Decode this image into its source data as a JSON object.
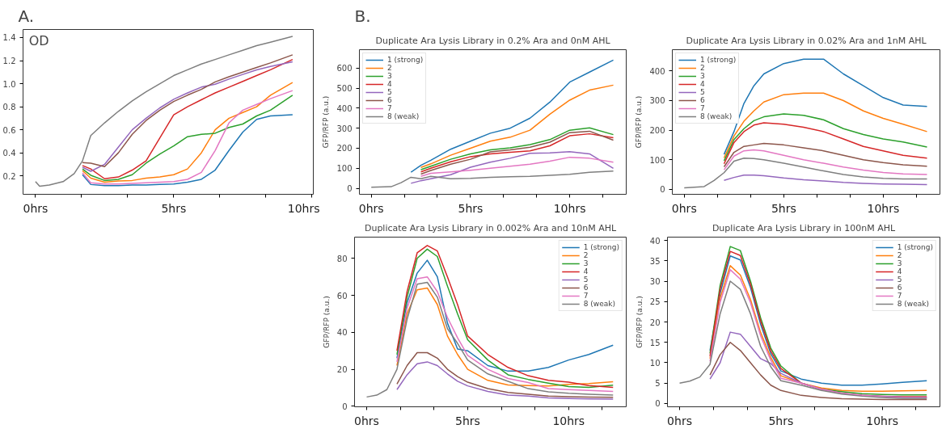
{
  "chart_data": [
    {
      "type": "line",
      "annotations": [
        "A.",
        "OD"
      ],
      "x": [
        0,
        0.15,
        0.5,
        1,
        1.4,
        1.7,
        2,
        2.5,
        3,
        3.5,
        4,
        4.5,
        5,
        5.5,
        6,
        6.5,
        7,
        7.5,
        8,
        8.5,
        9.3
      ],
      "xlim": [
        -0.45,
        10.05
      ],
      "ylim": [
        0.04,
        1.47
      ],
      "xticks": [
        {
          "value": 0,
          "label": "0hrs"
        },
        {
          "value": 1.667,
          "label": null
        },
        {
          "value": 3.333,
          "label": null
        },
        {
          "value": 5,
          "label": "5hrs"
        },
        {
          "value": 6.667,
          "label": null
        },
        {
          "value": 8.333,
          "label": null
        },
        {
          "value": 10,
          "label": "10hrs"
        }
      ],
      "yticks": [
        {
          "value": 0.2,
          "label": "0.2"
        },
        {
          "value": 0.4,
          "label": "0.4"
        },
        {
          "value": 0.6,
          "label": "0.6"
        },
        {
          "value": 0.8,
          "label": "0.8"
        },
        {
          "value": 1.0,
          "label": "1.0"
        },
        {
          "value": 1.2,
          "label": "1.2"
        },
        {
          "value": 1.4,
          "label": "1.4"
        }
      ],
      "grid": false,
      "legend": false,
      "series": [
        {
          "color": "#1f77b4",
          "values": [
            null,
            null,
            null,
            null,
            null,
            0.21,
            0.125,
            0.115,
            0.115,
            0.12,
            0.12,
            0.125,
            0.13,
            0.145,
            0.17,
            0.25,
            0.42,
            0.58,
            0.69,
            0.72,
            0.73
          ]
        },
        {
          "color": "#ff7f0e",
          "values": [
            null,
            null,
            null,
            null,
            null,
            0.245,
            0.18,
            0.145,
            0.155,
            0.16,
            0.18,
            0.19,
            0.21,
            0.26,
            0.4,
            0.6,
            0.7,
            0.75,
            0.8,
            0.9,
            1.01
          ]
        },
        {
          "color": "#2ca02c",
          "values": [
            null,
            null,
            null,
            null,
            null,
            0.26,
            0.205,
            0.16,
            0.17,
            0.21,
            0.31,
            0.39,
            0.46,
            0.54,
            0.56,
            0.57,
            0.62,
            0.65,
            0.72,
            0.77,
            0.9
          ]
        },
        {
          "color": "#d62728",
          "values": [
            null,
            null,
            null,
            null,
            null,
            0.29,
            0.26,
            0.175,
            0.19,
            0.25,
            0.33,
            0.53,
            0.73,
            0.8,
            0.86,
            0.92,
            0.97,
            1.02,
            1.07,
            1.12,
            1.21
          ]
        },
        {
          "color": "#9467bd",
          "values": [
            null,
            null,
            null,
            null,
            null,
            0.275,
            0.24,
            0.3,
            0.45,
            0.6,
            0.7,
            0.79,
            0.865,
            0.92,
            0.97,
            0.995,
            1.04,
            1.08,
            1.12,
            1.15,
            1.19
          ]
        },
        {
          "color": "#8c564b",
          "values": [
            null,
            null,
            null,
            null,
            null,
            0.315,
            0.31,
            0.28,
            0.4,
            0.56,
            0.68,
            0.77,
            0.845,
            0.9,
            0.95,
            1.015,
            1.06,
            1.1,
            1.14,
            1.18,
            1.25
          ]
        },
        {
          "color": "#e377c2",
          "values": [
            null,
            null,
            null,
            null,
            null,
            0.225,
            0.14,
            0.13,
            0.13,
            0.135,
            0.14,
            0.145,
            0.15,
            0.17,
            0.23,
            0.42,
            0.66,
            0.77,
            0.82,
            0.87,
            0.94
          ]
        },
        {
          "color": "#7f7f7f",
          "values": [
            0.15,
            0.11,
            0.12,
            0.15,
            0.22,
            0.33,
            0.55,
            0.66,
            0.76,
            0.85,
            0.93,
            1.0,
            1.07,
            1.12,
            1.17,
            1.21,
            1.25,
            1.29,
            1.33,
            1.36,
            1.41
          ]
        }
      ]
    },
    {
      "type": "line",
      "title": "Duplicate Ara Lysis Library in 0.2% Ara and 0nM AHL",
      "ylabel": "GFP/RFP (a.u.)",
      "annotations": [
        "B."
      ],
      "x": [
        0,
        1,
        1.5,
        2,
        2.5,
        3,
        4,
        5,
        6,
        7,
        8,
        9,
        10,
        11,
        12.2
      ],
      "xlim": [
        -0.6,
        12.85
      ],
      "ylim": [
        -30,
        692
      ],
      "xticks": [
        {
          "value": 0,
          "label": "0hrs"
        },
        {
          "value": 1.667,
          "label": null
        },
        {
          "value": 3.333,
          "label": null
        },
        {
          "value": 5,
          "label": "5hrs"
        },
        {
          "value": 6.667,
          "label": null
        },
        {
          "value": 8.333,
          "label": null
        },
        {
          "value": 10,
          "label": "10hrs"
        },
        {
          "value": 11.667,
          "label": null
        }
      ],
      "yticks": [
        0,
        100,
        200,
        300,
        400,
        500,
        600
      ],
      "grid": false,
      "legend": "top left",
      "series": [
        {
          "name": "1 (strong)",
          "color": "#1f77b4",
          "values": [
            null,
            null,
            null,
            80,
            115,
            140,
            195,
            235,
            275,
            300,
            350,
            430,
            530,
            580,
            640
          ]
        },
        {
          "name": "2",
          "color": "#ff7f0e",
          "values": [
            null,
            null,
            null,
            null,
            104,
            122,
            165,
            200,
            235,
            255,
            290,
            370,
            440,
            490,
            515
          ]
        },
        {
          "name": "3",
          "color": "#2ca02c",
          "values": [
            null,
            null,
            null,
            null,
            93,
            110,
            145,
            172,
            192,
            202,
            218,
            243,
            290,
            302,
            268
          ]
        },
        {
          "name": "4",
          "color": "#d62728",
          "values": [
            null,
            null,
            null,
            null,
            82,
            100,
            132,
            158,
            172,
            180,
            187,
            212,
            262,
            272,
            252
          ]
        },
        {
          "name": "5",
          "color": "#9467bd",
          "values": [
            null,
            null,
            null,
            25,
            38,
            48,
            68,
            105,
            130,
            150,
            175,
            177,
            183,
            172,
            100
          ]
        },
        {
          "name": "6",
          "color": "#8c564b",
          "values": [
            null,
            null,
            null,
            null,
            71,
            89,
            120,
            145,
            182,
            192,
            205,
            230,
            278,
            285,
            240
          ]
        },
        {
          "name": "7",
          "color": "#e377c2",
          "values": [
            null,
            null,
            null,
            null,
            60,
            75,
            82,
            90,
            100,
            110,
            120,
            135,
            155,
            150,
            130
          ]
        },
        {
          "name": "8 (weak)",
          "color": "#7f7f7f",
          "values": [
            5,
            8,
            28,
            55,
            48,
            60,
            48,
            50,
            55,
            58,
            60,
            65,
            70,
            80,
            86
          ]
        }
      ]
    },
    {
      "type": "line",
      "title": "Duplicate Ara Lysis Library in 0.02% Ara and 1nM AHL",
      "ylabel": "GFP/RFP (a.u.)",
      "x": [
        0,
        1,
        1.5,
        2,
        2.5,
        3,
        3.5,
        4,
        5,
        6,
        7,
        8,
        9,
        10,
        11,
        12.2
      ],
      "xlim": [
        -0.6,
        12.85
      ],
      "ylim": [
        -17,
        472
      ],
      "xticks": [
        {
          "value": 0,
          "label": "0hrs"
        },
        {
          "value": 1.667,
          "label": null
        },
        {
          "value": 3.333,
          "label": null
        },
        {
          "value": 5,
          "label": "5hrs"
        },
        {
          "value": 6.667,
          "label": null
        },
        {
          "value": 8.333,
          "label": null
        },
        {
          "value": 10,
          "label": "10hrs"
        },
        {
          "value": 11.667,
          "label": null
        }
      ],
      "yticks": [
        0,
        100,
        200,
        300,
        400
      ],
      "grid": false,
      "legend": "top left",
      "series": [
        {
          "name": "1 (strong)",
          "color": "#1f77b4",
          "values": [
            null,
            null,
            null,
            118,
            195,
            290,
            350,
            390,
            425,
            440,
            440,
            390,
            350,
            310,
            285,
            280
          ]
        },
        {
          "name": "2",
          "color": "#ff7f0e",
          "values": [
            null,
            null,
            null,
            106,
            180,
            230,
            265,
            295,
            320,
            325,
            325,
            300,
            265,
            240,
            220,
            195
          ]
        },
        {
          "name": "3",
          "color": "#2ca02c",
          "values": [
            null,
            null,
            null,
            96,
            168,
            205,
            232,
            245,
            255,
            250,
            235,
            205,
            185,
            170,
            160,
            143
          ]
        },
        {
          "name": "4",
          "color": "#d62728",
          "values": [
            null,
            null,
            null,
            86,
            158,
            195,
            217,
            225,
            220,
            210,
            195,
            170,
            145,
            130,
            115,
            105
          ]
        },
        {
          "name": "5",
          "color": "#9467bd",
          "values": [
            null,
            null,
            null,
            30,
            40,
            48,
            48,
            46,
            38,
            32,
            28,
            23,
            20,
            18,
            17,
            16
          ]
        },
        {
          "name": "6",
          "color": "#8c564b",
          "values": [
            null,
            null,
            null,
            76,
            125,
            145,
            150,
            155,
            150,
            140,
            130,
            115,
            100,
            90,
            83,
            78
          ]
        },
        {
          "name": "7",
          "color": "#e377c2",
          "values": [
            null,
            null,
            null,
            66,
            112,
            130,
            133,
            130,
            115,
            100,
            88,
            75,
            65,
            57,
            52,
            50
          ]
        },
        {
          "name": "8 (weak)",
          "color": "#7f7f7f",
          "values": [
            5,
            9,
            30,
            56,
            95,
            105,
            104,
            100,
            88,
            75,
            62,
            50,
            42,
            37,
            35,
            35
          ]
        }
      ]
    },
    {
      "type": "line",
      "title": "Duplicate Ara Lysis Library in 0.002% Ara and 10nM AHL",
      "ylabel": "GFP/RFP (a.u.)",
      "x": [
        0,
        0.5,
        1,
        1.5,
        2,
        2.5,
        3,
        3.5,
        4,
        4.5,
        5,
        6,
        7,
        8,
        9,
        10,
        11,
        12.2
      ],
      "xlim": [
        -0.6,
        12.85
      ],
      "ylim": [
        -0.3,
        91.5
      ],
      "xticks": [
        {
          "value": 0,
          "label": "0hrs"
        },
        {
          "value": 1.667,
          "label": null
        },
        {
          "value": 3.333,
          "label": null
        },
        {
          "value": 5,
          "label": "5hrs"
        },
        {
          "value": 6.667,
          "label": null
        },
        {
          "value": 8.333,
          "label": null
        },
        {
          "value": 10,
          "label": "10hrs"
        },
        {
          "value": 11.667,
          "label": null
        }
      ],
      "yticks": [
        0,
        20,
        40,
        60,
        80
      ],
      "grid": false,
      "legend": "top right",
      "series": [
        {
          "name": "1 (strong)",
          "color": "#1f77b4",
          "values": [
            null,
            null,
            null,
            26,
            56,
            72,
            79,
            70,
            45,
            31,
            30,
            22,
            19,
            19,
            21,
            25,
            28,
            33
          ]
        },
        {
          "name": "2",
          "color": "#ff7f0e",
          "values": [
            null,
            null,
            null,
            22,
            50,
            63,
            64,
            55,
            38,
            28,
            20,
            14,
            11.5,
            11.2,
            11,
            11.8,
            12.3,
            13.2
          ]
        },
        {
          "name": "3",
          "color": "#2ca02c",
          "values": [
            null,
            null,
            null,
            28,
            59,
            80,
            85,
            81,
            65,
            50,
            36,
            25,
            17,
            14.5,
            12.5,
            10.6,
            10.2,
            11.4
          ]
        },
        {
          "name": "4",
          "color": "#d62728",
          "values": [
            null,
            null,
            null,
            30,
            62,
            83,
            87,
            84,
            70,
            55,
            38,
            28,
            21,
            16.5,
            14,
            13,
            11.2,
            10.2
          ]
        },
        {
          "name": "5",
          "color": "#9467bd",
          "values": [
            null,
            null,
            null,
            9,
            17,
            23,
            24,
            22,
            17.5,
            13.5,
            11,
            8,
            6,
            5.5,
            4.5,
            4.2,
            4,
            3.8
          ]
        },
        {
          "name": "6",
          "color": "#8c564b",
          "values": [
            null,
            null,
            null,
            12,
            22,
            29,
            29,
            26,
            20,
            16,
            13,
            9.5,
            7.5,
            6.5,
            5.5,
            5.2,
            5,
            4.8
          ]
        },
        {
          "name": "7",
          "color": "#e377c2",
          "values": [
            null,
            null,
            null,
            24,
            53,
            69,
            70,
            62,
            48,
            37,
            27.5,
            20,
            15,
            12.8,
            9.5,
            9,
            8.5,
            8
          ]
        },
        {
          "name": "8 (weak)",
          "color": "#7f7f7f",
          "values": [
            5,
            6,
            9,
            20,
            47,
            66,
            67,
            59,
            42,
            34,
            25,
            17.5,
            13.5,
            9.5,
            7.8,
            7,
            6.5,
            6
          ]
        }
      ]
    },
    {
      "type": "line",
      "title": "Duplicate Ara Lysis Library in 100nM AHL",
      "ylabel": "GFP/RFP (a.u.)",
      "x": [
        0,
        0.5,
        1,
        1.5,
        2,
        2.5,
        3,
        3.5,
        4,
        4.5,
        5,
        6,
        7,
        8,
        9,
        10,
        11,
        12.2
      ],
      "xlim": [
        -0.6,
        12.85
      ],
      "ylim": [
        -0.8,
        40.8
      ],
      "xticks": [
        {
          "value": 0,
          "label": "0hrs"
        },
        {
          "value": 1.667,
          "label": null
        },
        {
          "value": 3.333,
          "label": null
        },
        {
          "value": 5,
          "label": "5hrs"
        },
        {
          "value": 6.667,
          "label": null
        },
        {
          "value": 8.333,
          "label": null
        },
        {
          "value": 10,
          "label": "10hrs"
        },
        {
          "value": 11.667,
          "label": null
        }
      ],
      "yticks": [
        0,
        5,
        10,
        15,
        20,
        25,
        30,
        35,
        40
      ],
      "grid": false,
      "legend": "top right",
      "series": [
        {
          "name": "1 (strong)",
          "color": "#1f77b4",
          "values": [
            null,
            null,
            null,
            13,
            27,
            36.2,
            35.2,
            28.4,
            19.4,
            12.2,
            8,
            6,
            5,
            4.5,
            4.5,
            4.8,
            5.2,
            5.6
          ]
        },
        {
          "name": "2",
          "color": "#ff7f0e",
          "values": [
            null,
            null,
            null,
            11,
            25.8,
            33.8,
            31.5,
            25.5,
            17.4,
            11.3,
            6.8,
            5,
            3.8,
            3.2,
            3,
            3,
            3.1,
            3.2
          ]
        },
        {
          "name": "3",
          "color": "#2ca02c",
          "values": [
            null,
            null,
            null,
            12.3,
            29,
            38.5,
            37.5,
            30,
            21,
            13.6,
            9.2,
            5,
            3.5,
            2.9,
            2.4,
            2.2,
            2.1,
            2.1
          ]
        },
        {
          "name": "4",
          "color": "#d62728",
          "values": [
            null,
            null,
            null,
            11.6,
            28,
            37.3,
            36.3,
            29.2,
            20.2,
            12.9,
            8.6,
            5,
            3.5,
            2.5,
            2,
            1.8,
            1.7,
            1.7
          ]
        },
        {
          "name": "5",
          "color": "#9467bd",
          "values": [
            null,
            null,
            null,
            6,
            10,
            17.5,
            17,
            14,
            11,
            9.8,
            7.4,
            5,
            3.5,
            2.5,
            2,
            1.8,
            1.6,
            1.5
          ]
        },
        {
          "name": "6",
          "color": "#8c564b",
          "values": [
            null,
            null,
            null,
            7,
            12,
            15,
            13,
            10,
            7,
            4.5,
            3.2,
            2,
            1.5,
            1.2,
            1.1,
            1,
            1,
            1
          ]
        },
        {
          "name": "7",
          "color": "#e377c2",
          "values": [
            null,
            null,
            null,
            10.3,
            24.8,
            32.8,
            30.5,
            24.7,
            16.6,
            10.6,
            6.2,
            5,
            3.5,
            2.5,
            2,
            1.7,
            1.5,
            1.5
          ]
        },
        {
          "name": "8 (weak)",
          "color": "#7f7f7f",
          "values": [
            5,
            5.5,
            6.5,
            9.6,
            22,
            30,
            28,
            22,
            14,
            9,
            5.6,
            4.5,
            3.2,
            2.3,
            1.8,
            1.5,
            1.3,
            1.3
          ]
        }
      ]
    }
  ]
}
